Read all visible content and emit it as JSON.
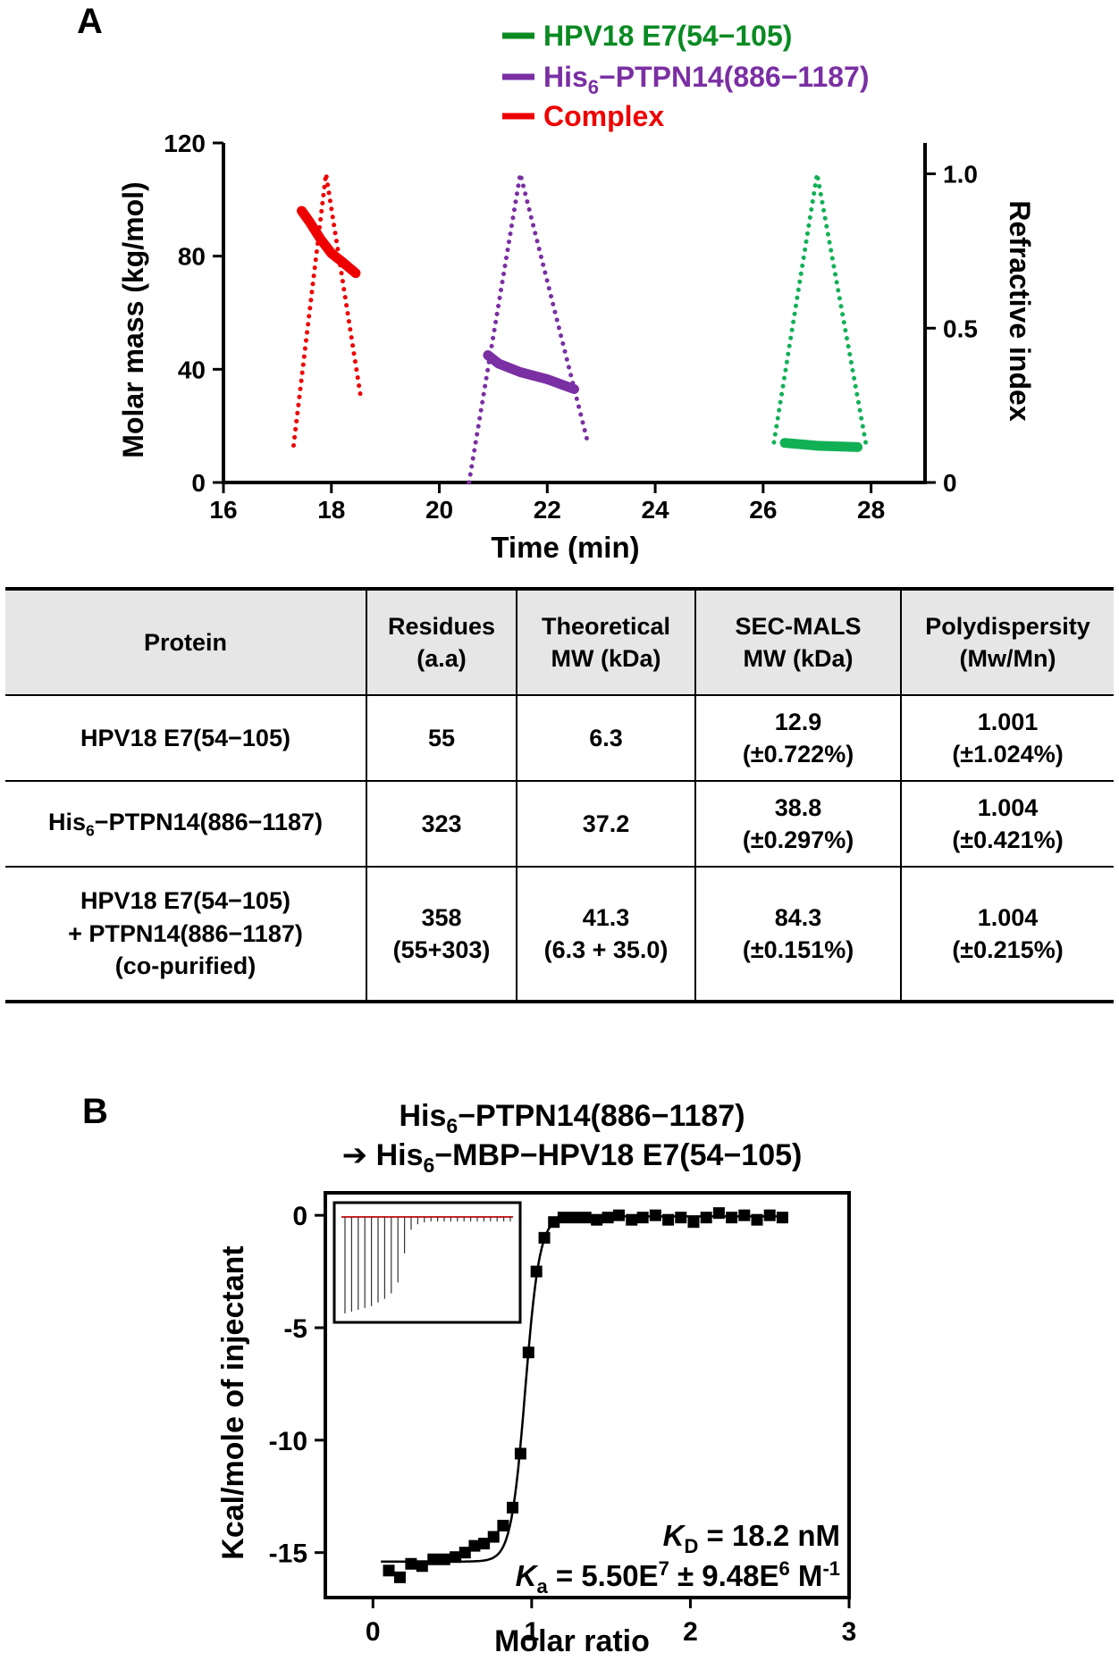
{
  "panels": {
    "a_label": "A",
    "b_label": "B"
  },
  "chart_data": [
    {
      "type": "line",
      "panel": "A",
      "xlabel": "Time (min)",
      "ylabel": "Molar mass (kg/mol)",
      "y2label": "Refractive index",
      "xlim": [
        16,
        29
      ],
      "ylim": [
        0,
        120
      ],
      "y2lim": [
        0,
        1.1
      ],
      "xticks": [
        "16",
        "18",
        "20",
        "22",
        "24",
        "26",
        "28"
      ],
      "yticks": [
        "0",
        "40",
        "80",
        "120"
      ],
      "y2ticks": [
        "0",
        "0.5",
        "1.0"
      ],
      "legend": [
        {
          "name": "HPV18 E7(54−105)",
          "color": "#0a8a22"
        },
        {
          "name": "His₆−PTPN14(886−1187)",
          "color": "#7a2fa3"
        },
        {
          "name": "Complex",
          "color": "#ee0000"
        }
      ],
      "series": [
        {
          "name": "Complex",
          "kind": "molar mass",
          "color": "#ee0000",
          "x": [
            17.45,
            17.6,
            17.8,
            18.0,
            18.2,
            18.45
          ],
          "y": [
            96,
            92,
            86,
            81,
            78,
            74
          ]
        },
        {
          "name": "Complex",
          "kind": "refractive index",
          "color": "#ee0000",
          "x": [
            17.3,
            17.9,
            18.55
          ],
          "y2": [
            0.12,
            1.0,
            0.27
          ]
        },
        {
          "name": "His₆−PTPN14(886−1187)",
          "kind": "molar mass",
          "color": "#7a2fa3",
          "x": [
            20.9,
            21.1,
            21.5,
            22.0,
            22.5
          ],
          "y": [
            45,
            42,
            39,
            36.5,
            33
          ]
        },
        {
          "name": "His₆−PTPN14(886−1187)",
          "kind": "refractive index",
          "color": "#7a2fa3",
          "x": [
            20.55,
            21.5,
            22.75
          ],
          "y2": [
            0.0,
            1.0,
            0.13
          ]
        },
        {
          "name": "HPV18 E7(54−105)",
          "kind": "molar mass",
          "color": "#12b055",
          "x": [
            26.4,
            27.0,
            27.75
          ],
          "y": [
            14,
            13,
            12.5
          ]
        },
        {
          "name": "HPV18 E7(54−105)",
          "kind": "refractive index",
          "color": "#12b055",
          "x": [
            26.2,
            27.0,
            27.9
          ],
          "y2": [
            0.13,
            1.0,
            0.13
          ]
        }
      ]
    },
    {
      "type": "scatter",
      "panel": "B",
      "title_line1": "His₆−PTPN14(886−1187)",
      "title_line2": "➔ His₆−MBP−HPV18 E7(54−105)",
      "xlabel": "Molar ratio",
      "ylabel": "Kcal/mole of injectant",
      "xlim": [
        -0.3,
        3.0
      ],
      "ylim": [
        -17,
        1
      ],
      "xticks": [
        "0",
        "1",
        "2",
        "3"
      ],
      "yticks": [
        "0",
        "-5",
        "-10",
        "-15"
      ],
      "annotation_kd": "Kᴅ = 18.2 nM",
      "annotation_ka": "Kₐ = 5.50E⁷ ± 9.48E⁶ M⁻¹",
      "points": [
        {
          "x": 0.1,
          "y": -15.8
        },
        {
          "x": 0.17,
          "y": -16.1
        },
        {
          "x": 0.24,
          "y": -15.5
        },
        {
          "x": 0.31,
          "y": -15.6
        },
        {
          "x": 0.38,
          "y": -15.3
        },
        {
          "x": 0.45,
          "y": -15.3
        },
        {
          "x": 0.52,
          "y": -15.2
        },
        {
          "x": 0.58,
          "y": -15.0
        },
        {
          "x": 0.64,
          "y": -14.7
        },
        {
          "x": 0.7,
          "y": -14.6
        },
        {
          "x": 0.76,
          "y": -14.3
        },
        {
          "x": 0.82,
          "y": -13.8
        },
        {
          "x": 0.88,
          "y": -13.0
        },
        {
          "x": 0.93,
          "y": -10.6
        },
        {
          "x": 0.98,
          "y": -6.1
        },
        {
          "x": 1.03,
          "y": -2.5
        },
        {
          "x": 1.08,
          "y": -1.0
        },
        {
          "x": 1.14,
          "y": -0.3
        },
        {
          "x": 1.2,
          "y": -0.1
        },
        {
          "x": 1.27,
          "y": -0.1
        },
        {
          "x": 1.34,
          "y": -0.1
        },
        {
          "x": 1.41,
          "y": -0.2
        },
        {
          "x": 1.48,
          "y": -0.1
        },
        {
          "x": 1.55,
          "y": 0.0
        },
        {
          "x": 1.63,
          "y": -0.2
        },
        {
          "x": 1.7,
          "y": -0.1
        },
        {
          "x": 1.78,
          "y": 0.0
        },
        {
          "x": 1.86,
          "y": -0.2
        },
        {
          "x": 1.94,
          "y": -0.1
        },
        {
          "x": 2.02,
          "y": -0.3
        },
        {
          "x": 2.1,
          "y": -0.1
        },
        {
          "x": 2.18,
          "y": 0.1
        },
        {
          "x": 2.26,
          "y": -0.1
        },
        {
          "x": 2.34,
          "y": 0.0
        },
        {
          "x": 2.42,
          "y": -0.2
        },
        {
          "x": 2.5,
          "y": 0.0
        },
        {
          "x": 2.58,
          "y": -0.1
        }
      ],
      "fit": {
        "bottom": -15.4,
        "top": -0.05,
        "midpoint": 0.96,
        "width": 0.045,
        "xrange": [
          0.05,
          2.58
        ]
      }
    }
  ],
  "table": {
    "headers": [
      {
        "line1": "Protein",
        "line2": ""
      },
      {
        "line1": "Residues",
        "line2": "(a.a)"
      },
      {
        "line1": "Theoretical",
        "line2": "MW (kDa)"
      },
      {
        "line1": "SEC-MALS",
        "line2": "MW (kDa)"
      },
      {
        "line1": "Polydispersity",
        "line2": "(Mw/Mn)"
      }
    ],
    "rows": [
      {
        "protein": [
          "HPV18  E7(54−105)"
        ],
        "residues": [
          "55"
        ],
        "theoretical": [
          "6.3"
        ],
        "secmals": [
          "12.9",
          "(±0.722%)"
        ],
        "poly": [
          "1.001",
          "(±1.024%)"
        ]
      },
      {
        "protein": [
          "His₆−PTPN14(886−1187)"
        ],
        "residues": [
          "323"
        ],
        "theoretical": [
          "37.2"
        ],
        "secmals": [
          "38.8",
          "(±0.297%)"
        ],
        "poly": [
          "1.004",
          "(±0.421%)"
        ]
      },
      {
        "protein": [
          "HPV18  E7(54−105)",
          "+ PTPN14(886−1187)",
          "(co-purified)"
        ],
        "residues": [
          "358",
          "(55+303)"
        ],
        "theoretical": [
          "41.3",
          "(6.3 + 35.0)"
        ],
        "secmals": [
          "84.3",
          "(±0.151%)"
        ],
        "poly": [
          "1.004",
          "(±0.215%)"
        ]
      }
    ]
  }
}
